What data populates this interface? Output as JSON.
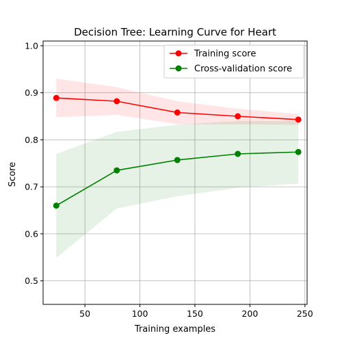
{
  "chart_data": {
    "type": "line",
    "title": "Decision Tree: Learning Curve for Heart",
    "xlabel": "Training examples",
    "ylabel": "Score",
    "xlim": [
      12,
      252
    ],
    "ylim": [
      0.45,
      1.01
    ],
    "xticks": [
      50,
      100,
      150,
      200,
      250
    ],
    "yticks": [
      0.5,
      0.6,
      0.7,
      0.8,
      0.9,
      1.0
    ],
    "grid": true,
    "legend_position": "top-right",
    "x": [
      24,
      79,
      134,
      189,
      244
    ],
    "series": [
      {
        "name": "Training score",
        "color": "#ff0000",
        "values": [
          0.889,
          0.882,
          0.858,
          0.85,
          0.843
        ],
        "band_lower": [
          0.848,
          0.853,
          0.833,
          0.833,
          0.832
        ],
        "band_upper": [
          0.93,
          0.912,
          0.882,
          0.866,
          0.855
        ]
      },
      {
        "name": "Cross-validation score",
        "color": "#008000",
        "values": [
          0.66,
          0.735,
          0.757,
          0.77,
          0.774
        ],
        "band_lower": [
          0.549,
          0.654,
          0.68,
          0.698,
          0.707
        ],
        "band_upper": [
          0.77,
          0.817,
          0.832,
          0.84,
          0.84
        ]
      }
    ]
  }
}
